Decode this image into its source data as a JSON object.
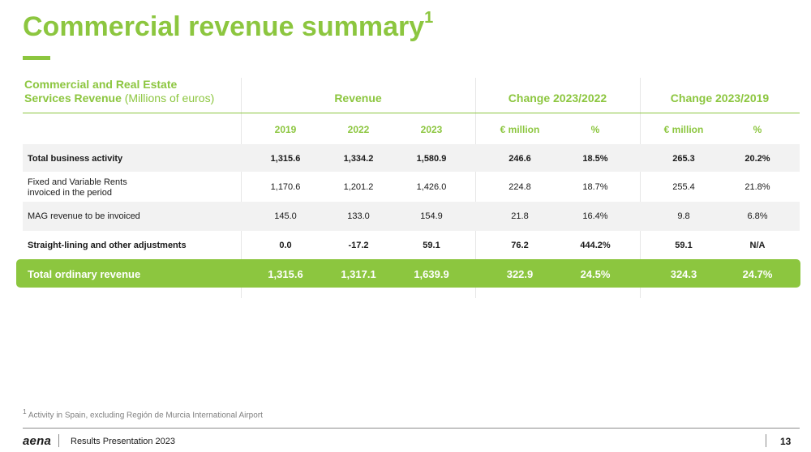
{
  "slide": {
    "title": "Commercial revenue summary",
    "title_sup": "1"
  },
  "table": {
    "title_line1": "Commercial and Real Estate",
    "title_line2": "Services Revenue",
    "title_unit": "(Millions of euros)",
    "groups": {
      "revenue": "Revenue",
      "change_2023_2022": "Change 2023/2022",
      "change_2023_2019": "Change 2023/2019"
    },
    "columns": [
      "2019",
      "2022",
      "2023",
      "€ million",
      "%",
      "€ million",
      "%"
    ],
    "rows": [
      {
        "label": "Total business activity",
        "values": [
          "1,315.6",
          "1,334.2",
          "1,580.9",
          "246.6",
          "18.5%",
          "265.3",
          "20.2%"
        ]
      },
      {
        "label_line1": "Fixed and Variable Rents",
        "label_line2": "invoiced in the period",
        "values": [
          "1,170.6",
          "1,201.2",
          "1,426.0",
          "224.8",
          "18.7%",
          "255.4",
          "21.8%"
        ]
      },
      {
        "label": "MAG revenue to be invoiced",
        "values": [
          "145.0",
          "133.0",
          "154.9",
          "21.8",
          "16.4%",
          "9.8",
          "6.8%"
        ]
      },
      {
        "label": "Straight-lining and other adjustments",
        "values": [
          "0.0",
          "-17.2",
          "59.1",
          "76.2",
          "444.2%",
          "59.1",
          "N/A"
        ]
      }
    ],
    "total": {
      "label": "Total ordinary revenue",
      "values": [
        "1,315.6",
        "1,317.1",
        "1,639.9",
        "322.9",
        "24.5%",
        "324.3",
        "24.7%"
      ]
    }
  },
  "footnote": {
    "marker": "1",
    "text": "Activity in Spain, excluding Región de Murcia International Airport"
  },
  "footer": {
    "logo": "aena",
    "text": "Results Presentation 2023",
    "page_number": "13"
  },
  "colors": {
    "accent": "#8cc63f",
    "row_shade": "#f2f2f2"
  }
}
